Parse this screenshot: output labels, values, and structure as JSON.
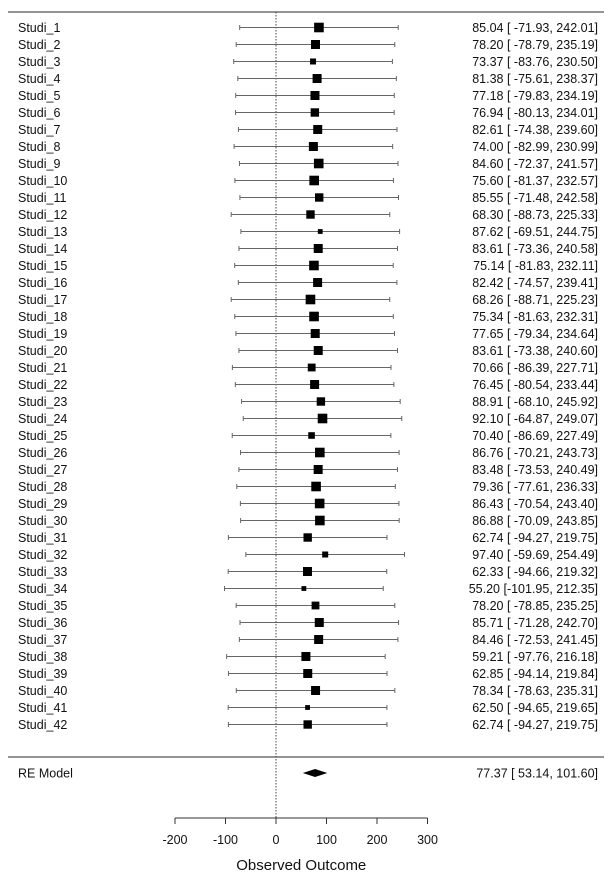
{
  "chart_data": {
    "type": "forest",
    "xlabel": "Observed Outcome",
    "xticks": [
      -200,
      -100,
      0,
      100,
      200,
      300
    ],
    "xlim": [
      -200,
      300
    ],
    "reference_line": 0,
    "studies": [
      {
        "label": "Studi_1",
        "estimate": 85.04,
        "lower": -71.93,
        "upper": 242.01,
        "text": "85.04 [ -71.93, 242.01]"
      },
      {
        "label": "Studi_2",
        "estimate": 78.2,
        "lower": -78.79,
        "upper": 235.19,
        "text": "78.20 [ -78.79, 235.19]"
      },
      {
        "label": "Studi_3",
        "estimate": 73.37,
        "lower": -83.76,
        "upper": 230.5,
        "text": "73.37 [ -83.76, 230.50]"
      },
      {
        "label": "Studi_4",
        "estimate": 81.38,
        "lower": -75.61,
        "upper": 238.37,
        "text": "81.38 [ -75.61, 238.37]"
      },
      {
        "label": "Studi_5",
        "estimate": 77.18,
        "lower": -79.83,
        "upper": 234.19,
        "text": "77.18 [ -79.83, 234.19]"
      },
      {
        "label": "Studi_6",
        "estimate": 76.94,
        "lower": -80.13,
        "upper": 234.01,
        "text": "76.94 [ -80.13, 234.01]"
      },
      {
        "label": "Studi_7",
        "estimate": 82.61,
        "lower": -74.38,
        "upper": 239.6,
        "text": "82.61 [ -74.38, 239.60]"
      },
      {
        "label": "Studi_8",
        "estimate": 74.0,
        "lower": -82.99,
        "upper": 230.99,
        "text": "74.00 [ -82.99, 230.99]"
      },
      {
        "label": "Studi_9",
        "estimate": 84.6,
        "lower": -72.37,
        "upper": 241.57,
        "text": "84.60 [ -72.37, 241.57]"
      },
      {
        "label": "Studi_10",
        "estimate": 75.6,
        "lower": -81.37,
        "upper": 232.57,
        "text": "75.60 [ -81.37, 232.57]"
      },
      {
        "label": "Studi_11",
        "estimate": 85.55,
        "lower": -71.48,
        "upper": 242.58,
        "text": "85.55 [ -71.48, 242.58]"
      },
      {
        "label": "Studi_12",
        "estimate": 68.3,
        "lower": -88.73,
        "upper": 225.33,
        "text": "68.30 [ -88.73, 225.33]"
      },
      {
        "label": "Studi_13",
        "estimate": 87.62,
        "lower": -69.51,
        "upper": 244.75,
        "text": "87.62 [ -69.51, 244.75]"
      },
      {
        "label": "Studi_14",
        "estimate": 83.61,
        "lower": -73.36,
        "upper": 240.58,
        "text": "83.61 [ -73.36, 240.58]"
      },
      {
        "label": "Studi_15",
        "estimate": 75.14,
        "lower": -81.83,
        "upper": 232.11,
        "text": "75.14 [ -81.83, 232.11]"
      },
      {
        "label": "Studi_16",
        "estimate": 82.42,
        "lower": -74.57,
        "upper": 239.41,
        "text": "82.42 [ -74.57, 239.41]"
      },
      {
        "label": "Studi_17",
        "estimate": 68.26,
        "lower": -88.71,
        "upper": 225.23,
        "text": "68.26 [ -88.71, 225.23]"
      },
      {
        "label": "Studi_18",
        "estimate": 75.34,
        "lower": -81.63,
        "upper": 232.31,
        "text": "75.34 [ -81.63, 232.31]"
      },
      {
        "label": "Studi_19",
        "estimate": 77.65,
        "lower": -79.34,
        "upper": 234.64,
        "text": "77.65 [ -79.34, 234.64]"
      },
      {
        "label": "Studi_20",
        "estimate": 83.61,
        "lower": -73.38,
        "upper": 240.6,
        "text": "83.61 [ -73.38, 240.60]"
      },
      {
        "label": "Studi_21",
        "estimate": 70.66,
        "lower": -86.39,
        "upper": 227.71,
        "text": "70.66 [ -86.39, 227.71]"
      },
      {
        "label": "Studi_22",
        "estimate": 76.45,
        "lower": -80.54,
        "upper": 233.44,
        "text": "76.45 [ -80.54, 233.44]"
      },
      {
        "label": "Studi_23",
        "estimate": 88.91,
        "lower": -68.1,
        "upper": 245.92,
        "text": "88.91 [ -68.10, 245.92]"
      },
      {
        "label": "Studi_24",
        "estimate": 92.1,
        "lower": -64.87,
        "upper": 249.07,
        "text": "92.10 [ -64.87, 249.07]"
      },
      {
        "label": "Studi_25",
        "estimate": 70.4,
        "lower": -86.69,
        "upper": 227.49,
        "text": "70.40 [ -86.69, 227.49]"
      },
      {
        "label": "Studi_26",
        "estimate": 86.76,
        "lower": -70.21,
        "upper": 243.73,
        "text": "86.76 [ -70.21, 243.73]"
      },
      {
        "label": "Studi_27",
        "estimate": 83.48,
        "lower": -73.53,
        "upper": 240.49,
        "text": "83.48 [ -73.53, 240.49]"
      },
      {
        "label": "Studi_28",
        "estimate": 79.36,
        "lower": -77.61,
        "upper": 236.33,
        "text": "79.36 [ -77.61, 236.33]"
      },
      {
        "label": "Studi_29",
        "estimate": 86.43,
        "lower": -70.54,
        "upper": 243.4,
        "text": "86.43 [ -70.54, 243.40]"
      },
      {
        "label": "Studi_30",
        "estimate": 86.88,
        "lower": -70.09,
        "upper": 243.85,
        "text": "86.88 [ -70.09, 243.85]"
      },
      {
        "label": "Studi_31",
        "estimate": 62.74,
        "lower": -94.27,
        "upper": 219.75,
        "text": "62.74 [ -94.27, 219.75]"
      },
      {
        "label": "Studi_32",
        "estimate": 97.4,
        "lower": -59.69,
        "upper": 254.49,
        "text": "97.40 [ -59.69, 254.49]"
      },
      {
        "label": "Studi_33",
        "estimate": 62.33,
        "lower": -94.66,
        "upper": 219.32,
        "text": "62.33 [ -94.66, 219.32]"
      },
      {
        "label": "Studi_34",
        "estimate": 55.2,
        "lower": -101.95,
        "upper": 212.35,
        "text": "55.20 [-101.95, 212.35]"
      },
      {
        "label": "Studi_35",
        "estimate": 78.2,
        "lower": -78.85,
        "upper": 235.25,
        "text": "78.20 [ -78.85, 235.25]"
      },
      {
        "label": "Studi_36",
        "estimate": 85.71,
        "lower": -71.28,
        "upper": 242.7,
        "text": "85.71 [ -71.28, 242.70]"
      },
      {
        "label": "Studi_37",
        "estimate": 84.46,
        "lower": -72.53,
        "upper": 241.45,
        "text": "84.46 [ -72.53, 241.45]"
      },
      {
        "label": "Studi_38",
        "estimate": 59.21,
        "lower": -97.76,
        "upper": 216.18,
        "text": "59.21 [ -97.76, 216.18]"
      },
      {
        "label": "Studi_39",
        "estimate": 62.85,
        "lower": -94.14,
        "upper": 219.84,
        "text": "62.85 [ -94.14, 219.84]"
      },
      {
        "label": "Studi_40",
        "estimate": 78.34,
        "lower": -78.63,
        "upper": 235.31,
        "text": "78.34 [ -78.63, 235.31]"
      },
      {
        "label": "Studi_41",
        "estimate": 62.5,
        "lower": -94.65,
        "upper": 219.65,
        "text": "62.50 [ -94.65, 219.65]"
      },
      {
        "label": "Studi_42",
        "estimate": 62.74,
        "lower": -94.27,
        "upper": 219.75,
        "text": "62.74 [ -94.27, 219.75]"
      }
    ],
    "weights": [
      1.1,
      1.0,
      0.5,
      1.0,
      1.0,
      0.9,
      1.0,
      1.0,
      1.1,
      1.1,
      0.9,
      0.9,
      0.3,
      1.0,
      1.1,
      1.0,
      1.1,
      1.1,
      1.0,
      1.0,
      0.8,
      1.0,
      0.9,
      1.1,
      0.6,
      1.1,
      1.0,
      1.1,
      1.1,
      1.1,
      0.9,
      0.5,
      1.0,
      0.3,
      0.8,
      1.0,
      1.0,
      1.0,
      1.0,
      1.0,
      0.3,
      0.9
    ],
    "summary": {
      "label": "RE Model",
      "estimate": 77.37,
      "lower": 53.14,
      "upper": 101.6,
      "text": "77.37 [  53.14, 101.60]"
    }
  }
}
